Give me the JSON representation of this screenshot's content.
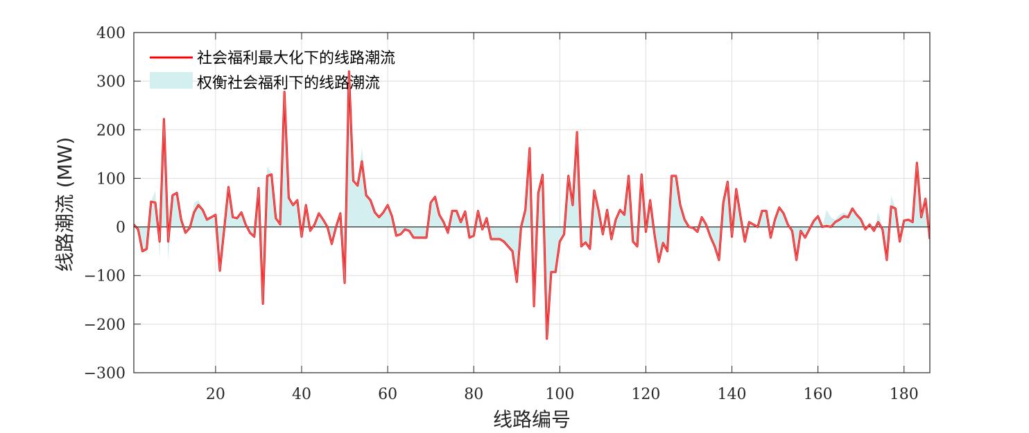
{
  "chart_data": {
    "type": "line",
    "xlabel": "线路编号",
    "ylabel": "线路潮流 (MW)",
    "xlim": [
      1,
      186
    ],
    "ylim": [
      -300,
      400
    ],
    "xticks": [
      20,
      40,
      60,
      80,
      100,
      120,
      140,
      160,
      180
    ],
    "yticks": [
      -300,
      -200,
      -100,
      0,
      100,
      200,
      300,
      400
    ],
    "grid": true,
    "legend_position": "top-left",
    "x": [
      1,
      2,
      3,
      4,
      5,
      6,
      7,
      8,
      9,
      10,
      11,
      12,
      13,
      14,
      15,
      16,
      17,
      18,
      19,
      20,
      21,
      22,
      23,
      24,
      25,
      26,
      27,
      28,
      29,
      30,
      31,
      32,
      33,
      34,
      35,
      36,
      37,
      38,
      39,
      40,
      41,
      42,
      43,
      44,
      45,
      46,
      47,
      48,
      49,
      50,
      51,
      52,
      53,
      54,
      55,
      56,
      57,
      58,
      59,
      60,
      61,
      62,
      63,
      64,
      65,
      66,
      67,
      68,
      69,
      70,
      71,
      72,
      73,
      74,
      75,
      76,
      77,
      78,
      79,
      80,
      81,
      82,
      83,
      84,
      85,
      86,
      87,
      88,
      89,
      90,
      91,
      92,
      93,
      94,
      95,
      96,
      97,
      98,
      99,
      100,
      101,
      102,
      103,
      104,
      105,
      106,
      107,
      108,
      109,
      110,
      111,
      112,
      113,
      114,
      115,
      116,
      117,
      118,
      119,
      120,
      121,
      122,
      123,
      124,
      125,
      126,
      127,
      128,
      129,
      130,
      131,
      132,
      133,
      134,
      135,
      136,
      137,
      138,
      139,
      140,
      141,
      142,
      143,
      144,
      145,
      146,
      147,
      148,
      149,
      150,
      151,
      152,
      153,
      154,
      155,
      156,
      157,
      158,
      159,
      160,
      161,
      162,
      163,
      164,
      165,
      166,
      167,
      168,
      169,
      170,
      171,
      172,
      173,
      174,
      175,
      176,
      177,
      178,
      179,
      180,
      181,
      182,
      183,
      184,
      185,
      186
    ],
    "series": [
      {
        "name": "社会福利最大化下的线路潮流",
        "style": "line",
        "color": "#ff0000",
        "values": [
          5,
          -5,
          -50,
          -45,
          52,
          50,
          -30,
          222,
          -30,
          65,
          70,
          15,
          -12,
          -2,
          30,
          45,
          35,
          15,
          20,
          25,
          -90,
          -5,
          82,
          20,
          18,
          30,
          5,
          -12,
          -20,
          80,
          -158,
          105,
          108,
          18,
          5,
          278,
          60,
          45,
          55,
          -20,
          45,
          -8,
          5,
          28,
          15,
          0,
          -35,
          0,
          28,
          -115,
          320,
          95,
          85,
          135,
          65,
          55,
          30,
          20,
          30,
          45,
          22,
          -18,
          -15,
          -5,
          -8,
          -22,
          -22,
          -22,
          -22,
          50,
          62,
          25,
          10,
          -12,
          33,
          33,
          10,
          32,
          -22,
          -18,
          33,
          -5,
          18,
          -25,
          -25,
          -25,
          -30,
          -40,
          -50,
          -113,
          0,
          35,
          162,
          -163,
          70,
          107,
          -230,
          -93,
          -93,
          -30,
          -15,
          105,
          45,
          195,
          -40,
          -32,
          -45,
          75,
          35,
          -15,
          35,
          -25,
          15,
          35,
          25,
          105,
          -30,
          -40,
          108,
          -10,
          55,
          -15,
          -72,
          -33,
          -50,
          105,
          105,
          45,
          15,
          0,
          -2,
          -10,
          20,
          5,
          -20,
          -40,
          -68,
          50,
          93,
          -20,
          78,
          22,
          -30,
          10,
          5,
          0,
          33,
          33,
          -22,
          15,
          40,
          28,
          5,
          -8,
          -68,
          -8,
          -22,
          -5,
          12,
          22,
          0,
          2,
          0,
          10,
          15,
          22,
          20,
          38,
          25,
          15,
          -5,
          5,
          -8,
          10,
          -5,
          -68,
          42,
          38,
          -30,
          13,
          15,
          10,
          132,
          20,
          58,
          -25
        ]
      },
      {
        "name": "权衡社会福利下的线路潮流",
        "style": "area",
        "color": "#d4efef",
        "values": [
          5,
          -5,
          -45,
          -55,
          52,
          75,
          -65,
          210,
          -70,
          60,
          75,
          20,
          -10,
          -5,
          50,
          55,
          40,
          20,
          22,
          30,
          -80,
          -10,
          85,
          15,
          20,
          28,
          0,
          -10,
          -20,
          75,
          -150,
          125,
          110,
          10,
          0,
          275,
          70,
          45,
          55,
          -25,
          45,
          -5,
          10,
          25,
          18,
          5,
          -35,
          5,
          25,
          -100,
          320,
          90,
          80,
          165,
          70,
          60,
          40,
          15,
          35,
          45,
          20,
          -15,
          -10,
          -5,
          -5,
          -20,
          -25,
          -25,
          -25,
          45,
          55,
          20,
          15,
          -15,
          30,
          30,
          15,
          30,
          -20,
          -15,
          35,
          -5,
          15,
          -25,
          -25,
          -25,
          -35,
          -45,
          -55,
          -100,
          0,
          30,
          150,
          -150,
          70,
          120,
          -210,
          -95,
          -95,
          -25,
          -15,
          115,
          45,
          180,
          -40,
          -35,
          -40,
          70,
          35,
          -15,
          30,
          -25,
          15,
          35,
          20,
          100,
          -30,
          -40,
          105,
          -15,
          50,
          -15,
          -65,
          -35,
          -50,
          105,
          105,
          40,
          15,
          0,
          -5,
          -10,
          20,
          5,
          -25,
          -45,
          -70,
          45,
          90,
          -25,
          75,
          20,
          -30,
          10,
          5,
          -5,
          30,
          30,
          -25,
          15,
          40,
          25,
          5,
          -10,
          -65,
          -10,
          -20,
          -5,
          10,
          20,
          0,
          35,
          20,
          15,
          25,
          30,
          25,
          40,
          25,
          20,
          -5,
          5,
          -10,
          30,
          0,
          -65,
          65,
          40,
          -30,
          10,
          15,
          10,
          130,
          20,
          60,
          -25
        ]
      }
    ]
  },
  "colors": {
    "primary_line": "#ff0000",
    "secondary_line": "#d97f82",
    "area_fill": "#d4efef",
    "grid": "#dedede",
    "axis": "#262626"
  }
}
